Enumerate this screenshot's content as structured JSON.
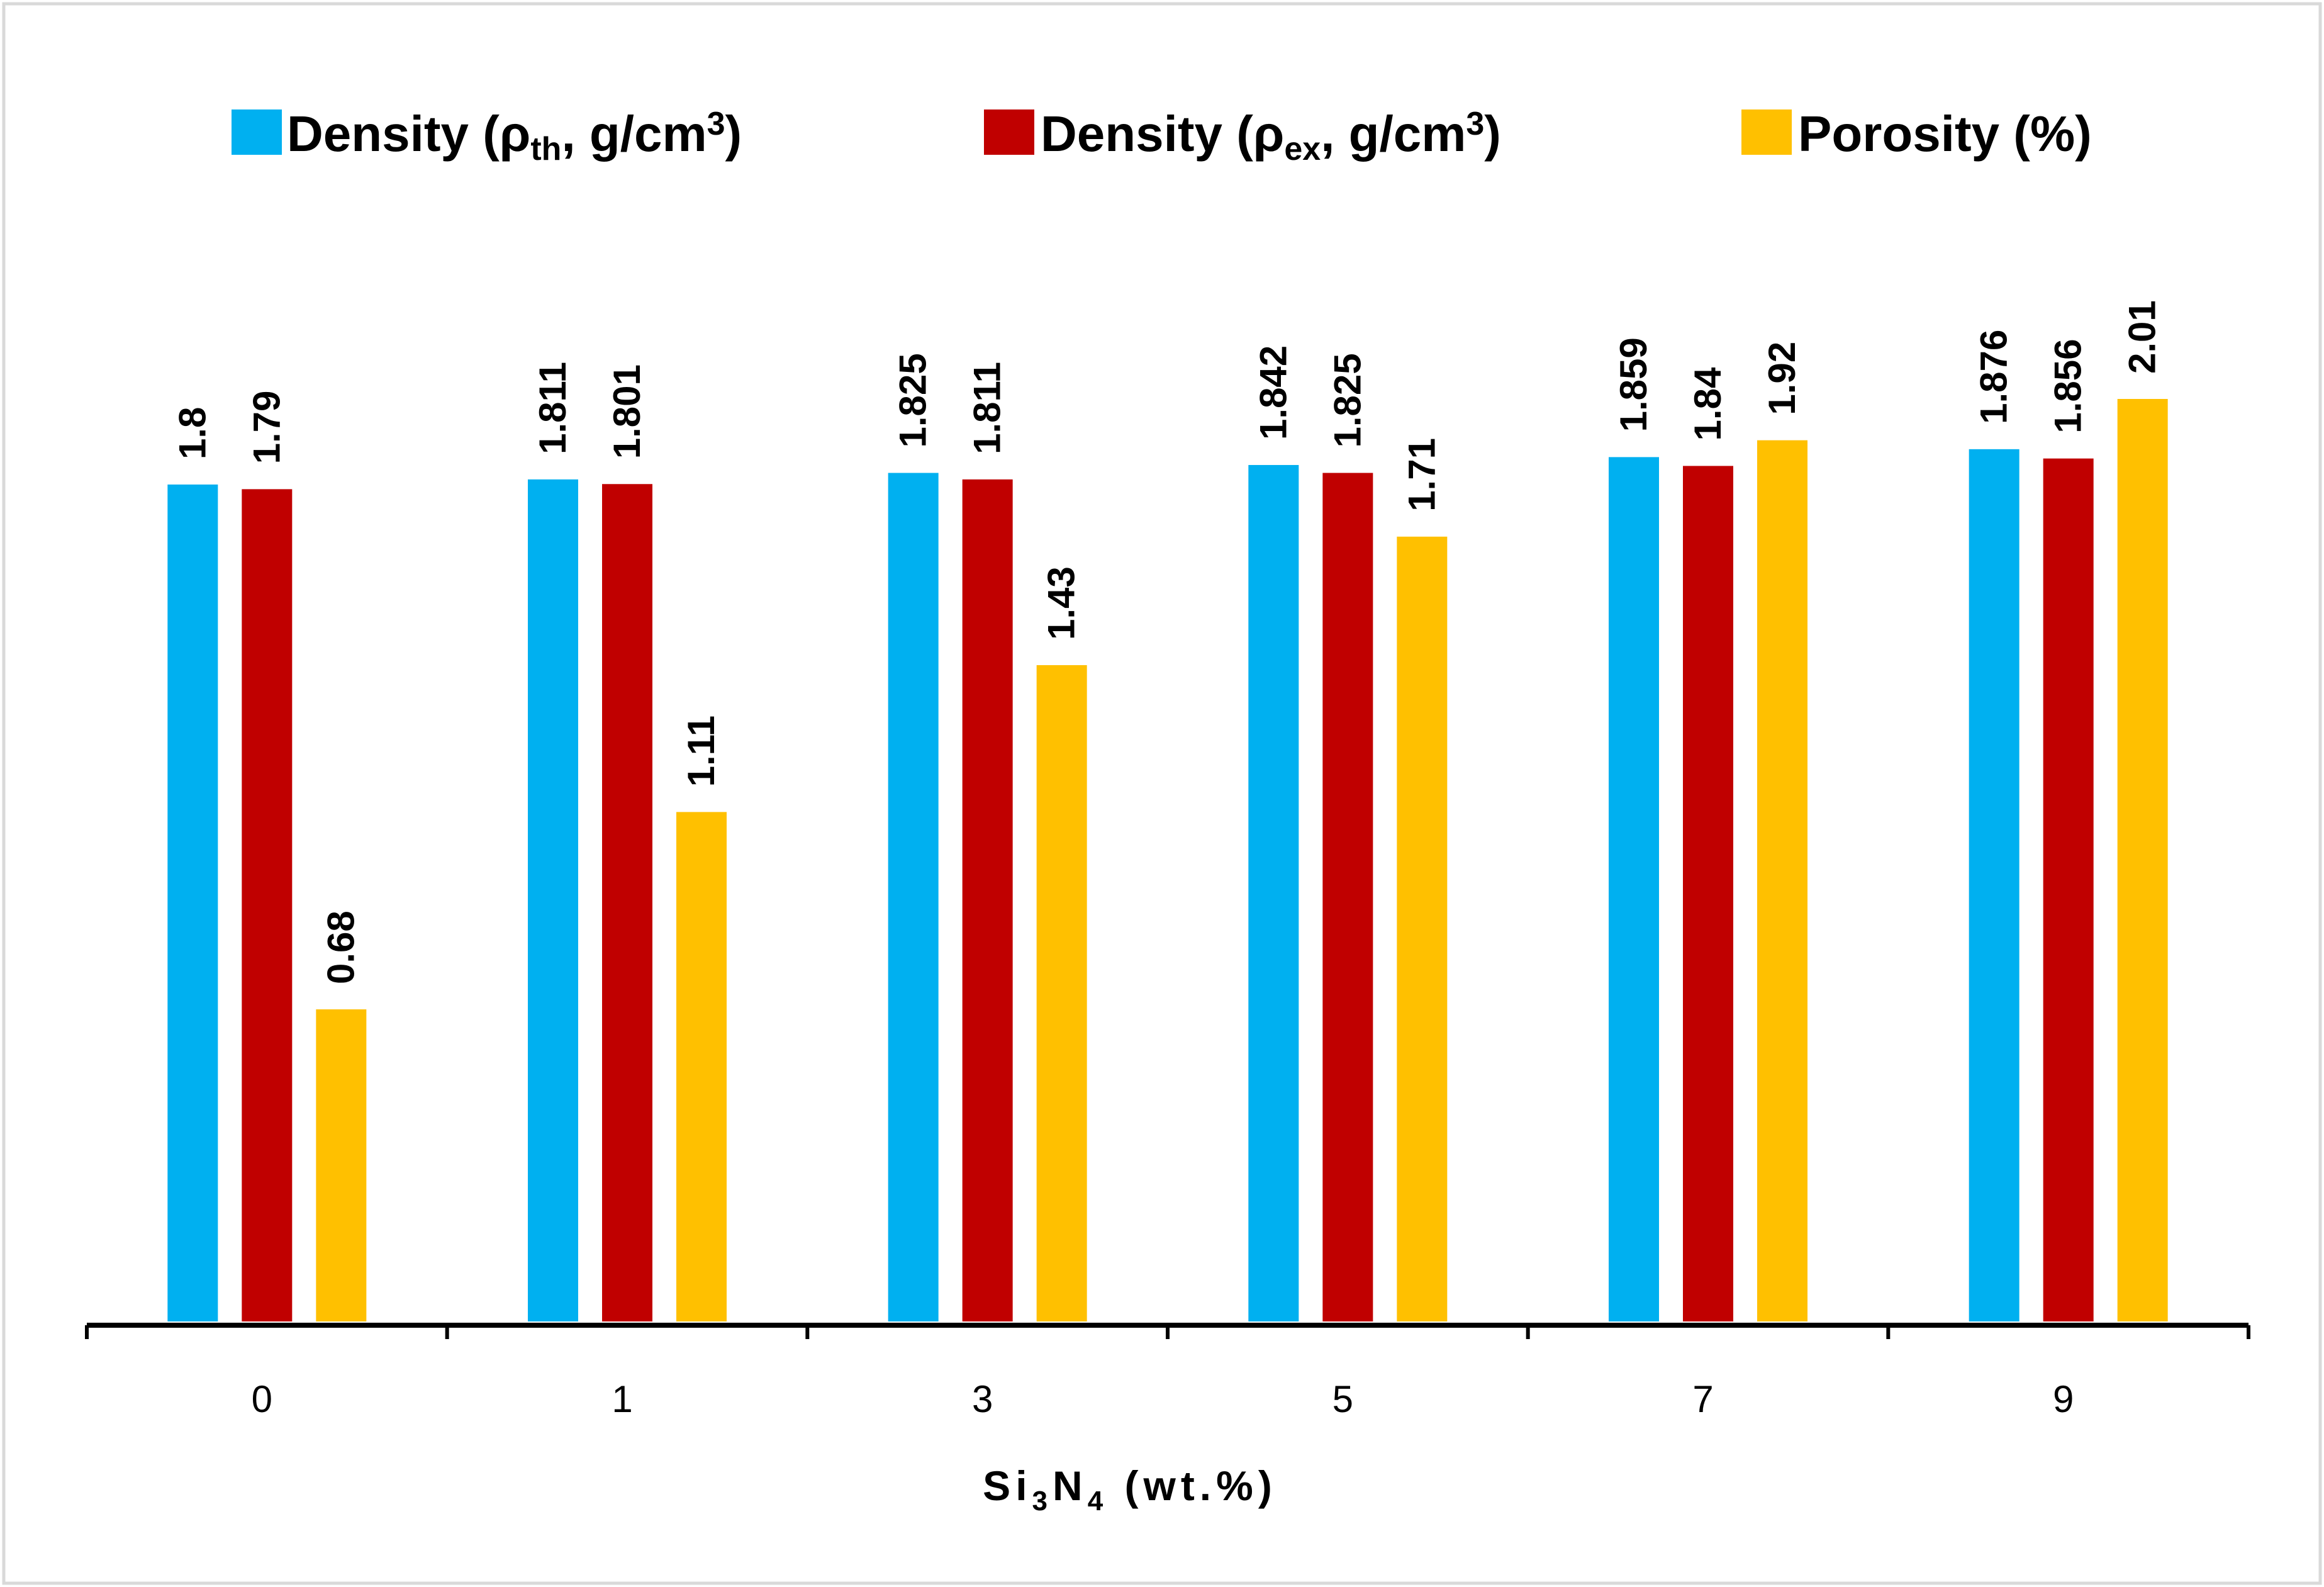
{
  "chart_data": {
    "type": "bar",
    "title": "",
    "xlabel": "Si3N4 (wt.%)",
    "xlabel_parts": {
      "a": "Si",
      "sub1": "3",
      "b": "N",
      "sub2": "4",
      "c": " (wt.%)"
    },
    "ylabel": "",
    "ylim": [
      0,
      2.01
    ],
    "grid": false,
    "legend_position": "top",
    "categories": [
      "0",
      "1",
      "3",
      "5",
      "7",
      "9"
    ],
    "series": [
      {
        "name": "Density (ρth, g/cm3)",
        "label_parts": {
          "a": "Density (ρ",
          "sub": "th",
          "b": ", g/cm",
          "sup": "3",
          "c": ")"
        },
        "color": "#00B0F0",
        "scale": "density",
        "values": [
          1.8,
          1.811,
          1.825,
          1.842,
          1.859,
          1.876
        ],
        "labels": [
          "1.8",
          "1.811",
          "1.825",
          "1.842",
          "1.859",
          "1.876"
        ]
      },
      {
        "name": "Density (ρex, g/cm3)",
        "label_parts": {
          "a": "Density (ρ",
          "sub": "ex",
          "b": ", g/cm",
          "sup": "3",
          "c": ")"
        },
        "color": "#C00000",
        "scale": "density",
        "values": [
          1.79,
          1.801,
          1.811,
          1.825,
          1.84,
          1.856
        ],
        "labels": [
          "1.79",
          "1.801",
          "1.811",
          "1.825",
          "1.84",
          "1.856"
        ]
      },
      {
        "name": "Porosity (%)",
        "label_parts": {
          "a": "Porosity (%)",
          "sub": "",
          "b": "",
          "sup": "",
          "c": ""
        },
        "color": "#FFC000",
        "scale": "porosity",
        "values": [
          0.68,
          1.11,
          1.43,
          1.71,
          1.92,
          2.01
        ],
        "labels": [
          "0.68",
          "1.11",
          "1.43",
          "1.71",
          "1.92",
          "2.01"
        ]
      }
    ]
  }
}
